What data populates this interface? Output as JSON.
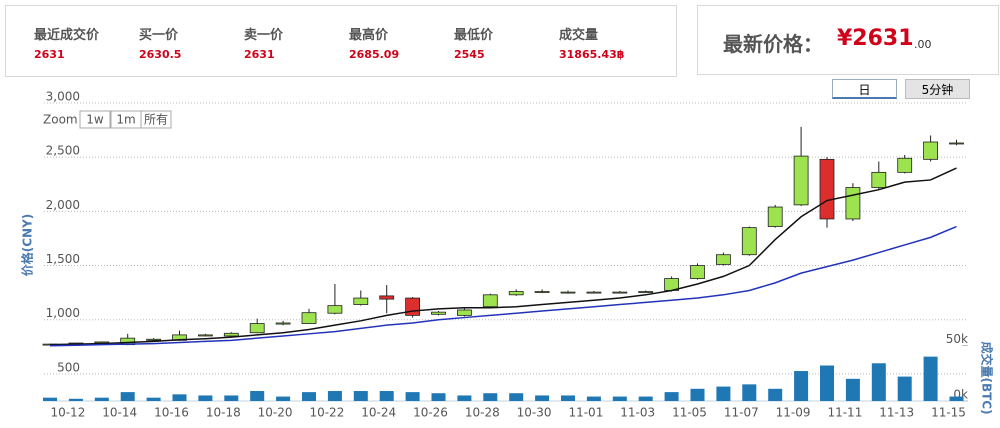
{
  "ticker": {
    "items": [
      {
        "label": "最近成交价",
        "value": "2631"
      },
      {
        "label": "买一价",
        "value": "2630.5"
      },
      {
        "label": "卖一价",
        "value": "2631"
      },
      {
        "label": "最高价",
        "value": "2685.09"
      },
      {
        "label": "最低价",
        "value": "2545"
      },
      {
        "label": "成交量",
        "value": "31865.43฿"
      }
    ],
    "latest_label": "最新价格：",
    "latest_value": "¥2631",
    "latest_decimals": ".00"
  },
  "tabs": [
    "日",
    "5分钟"
  ],
  "zoom": {
    "label": "Zoom",
    "buttons": [
      "1w",
      "1m",
      "所有"
    ]
  },
  "chart_data": {
    "type": "candlestick",
    "y_label": "价格(CNY)",
    "y2_label": "成交量(BTC)",
    "categories": [
      null,
      "10-12",
      null,
      "10-14",
      null,
      "10-16",
      null,
      "10-18",
      null,
      "10-20",
      null,
      "10-22",
      null,
      "10-24",
      null,
      "10-26",
      null,
      "10-28",
      null,
      "10-30",
      null,
      "11-01",
      null,
      "11-03",
      null,
      "11-05",
      null,
      "11-07",
      null,
      "11-09",
      null,
      "11-11",
      null,
      "11-13",
      null,
      "11-15"
    ],
    "open": [
      770,
      775,
      785,
      770,
      810,
      810,
      850,
      850,
      880,
      960,
      965,
      1060,
      1140,
      1220,
      1200,
      1050,
      1040,
      1120,
      1230,
      1255,
      1250,
      1250,
      1255,
      1255,
      1270,
      1380,
      1510,
      1600,
      1860,
      2060,
      2480,
      1930,
      2220,
      2360,
      2480,
      2630
    ],
    "high": [
      780,
      785,
      800,
      870,
      830,
      900,
      870,
      885,
      1010,
      990,
      1100,
      1330,
      1270,
      1320,
      1210,
      1080,
      1110,
      1240,
      1280,
      1280,
      1270,
      1265,
      1265,
      1270,
      1400,
      1520,
      1620,
      1860,
      2060,
      2780,
      2500,
      2260,
      2460,
      2520,
      2700,
      2660
    ],
    "low": [
      765,
      770,
      780,
      765,
      800,
      805,
      845,
      845,
      875,
      950,
      960,
      1050,
      1130,
      1060,
      1020,
      1040,
      1030,
      1110,
      1220,
      1245,
      1240,
      1245,
      1250,
      1250,
      1260,
      1370,
      1500,
      1590,
      1850,
      2050,
      1850,
      1910,
      2200,
      2350,
      2460,
      2610
    ],
    "close": [
      775,
      785,
      795,
      830,
      820,
      860,
      860,
      875,
      965,
      970,
      1065,
      1130,
      1200,
      1190,
      1040,
      1070,
      1090,
      1230,
      1260,
      1260,
      1255,
      1255,
      1255,
      1260,
      1380,
      1500,
      1600,
      1850,
      2040,
      2510,
      1930,
      2220,
      2360,
      2490,
      2640,
      2631
    ],
    "up_color": "#9de24f",
    "down_color": "#dd2e2e",
    "ma_lines": [
      {
        "color": "#111111",
        "values": [
          770,
          775,
          780,
          790,
          800,
          815,
          825,
          840,
          860,
          880,
          910,
          950,
          990,
          1040,
          1080,
          1100,
          1110,
          1110,
          1120,
          1140,
          1160,
          1180,
          1200,
          1230,
          1270,
          1330,
          1400,
          1500,
          1740,
          1950,
          2100,
          2150,
          2200,
          2270,
          2290,
          2400
        ]
      },
      {
        "color": "#2233bb",
        "values": [
          760,
          765,
          770,
          775,
          780,
          790,
          800,
          810,
          830,
          850,
          870,
          890,
          920,
          950,
          970,
          1000,
          1020,
          1040,
          1060,
          1080,
          1100,
          1120,
          1140,
          1160,
          1180,
          1200,
          1230,
          1270,
          1340,
          1430,
          1490,
          1550,
          1620,
          1690,
          1760,
          1860
        ]
      }
    ],
    "volume": [
      3000,
      2000,
      3000,
      8000,
      3000,
      6000,
      5000,
      5000,
      9000,
      4000,
      8000,
      9000,
      9000,
      9000,
      8000,
      7000,
      5000,
      7000,
      7000,
      5000,
      5000,
      4000,
      4000,
      4000,
      8000,
      11000,
      13000,
      15000,
      11000,
      27000,
      32000,
      20000,
      34000,
      22000,
      40000,
      4000
    ],
    "volume_color": "#1f77b4",
    "ylim": [
      250,
      3000
    ],
    "yticks": [
      500,
      {
        "value": 1000,
        "label": "1,000"
      },
      {
        "value": 1500,
        "label": "1,500"
      },
      {
        "value": 2000,
        "label": "2,000"
      },
      {
        "value": 2500,
        "label": "2,500"
      },
      {
        "value": 3000,
        "label": "3,000"
      }
    ],
    "y2lim": [
      0,
      55000
    ],
    "y2ticks": [
      {
        "value": 0,
        "label": "0k"
      },
      {
        "value": 50000,
        "label": "50k"
      }
    ],
    "grid": true
  }
}
